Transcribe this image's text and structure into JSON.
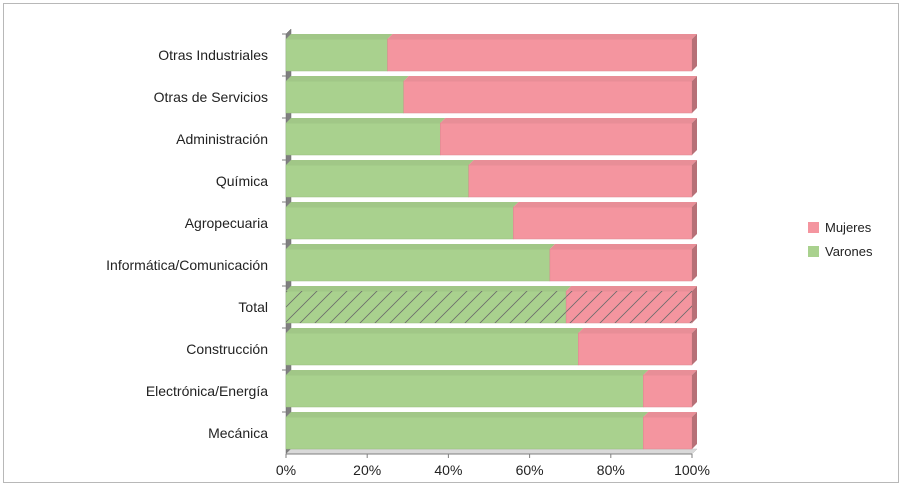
{
  "chart_data": {
    "type": "bar",
    "orientation": "horizontal",
    "stacked": "percent",
    "categories": [
      "Otras Industriales",
      "Otras de Servicios",
      "Administración",
      "Química",
      "Agropecuaria",
      "Informática/Comunicación",
      "Total",
      "Construcción",
      "Electrónica/Energía",
      "Mecánica"
    ],
    "highlighted_category": "Total",
    "series": [
      {
        "name": "Varones",
        "color": "#a9d18e",
        "values": [
          25,
          29,
          38,
          45,
          56,
          65,
          69,
          72,
          88,
          88
        ]
      },
      {
        "name": "Mujeres",
        "color": "#f4959f",
        "values": [
          75,
          71,
          62,
          55,
          44,
          35,
          31,
          28,
          12,
          12
        ]
      }
    ],
    "x_ticks": [
      "0%",
      "20%",
      "40%",
      "60%",
      "80%",
      "100%"
    ],
    "xlim": [
      0,
      100
    ],
    "grid": false,
    "legend": {
      "placement": "right",
      "entries": [
        "Mujeres",
        "Varones"
      ]
    },
    "title": "",
    "xlabel": "",
    "ylabel": ""
  }
}
